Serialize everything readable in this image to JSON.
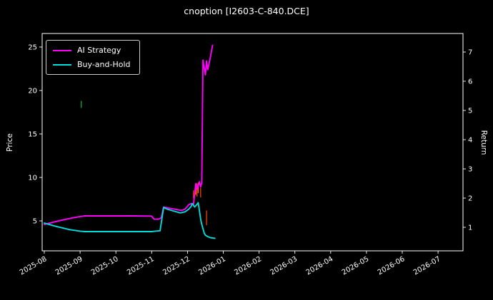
{
  "chart_data": {
    "type": "line",
    "title": "cnoption [I2603-C-840.DCE]",
    "ylabel": "Price",
    "y2label": "Return",
    "background_color": "#000000",
    "text_color": "#ffffff",
    "frame_color": "#ffffff",
    "legend_position": "upper left",
    "grid": false,
    "x_tick_labels": [
      "2025-08",
      "2025-09",
      "2025-10",
      "2025-11",
      "2025-12",
      "2026-01",
      "2026-02",
      "2026-03",
      "2026-04",
      "2026-05",
      "2026-06",
      "2026-07"
    ],
    "price_axis": {
      "ticks": [
        5,
        10,
        15,
        20,
        25
      ],
      "range": [
        1.6,
        26.6
      ]
    },
    "return_axis": {
      "ticks": [
        1,
        2,
        3,
        4,
        5,
        6,
        7
      ],
      "range": [
        0.2,
        7.6
      ]
    },
    "series": [
      {
        "name": "AI Strategy",
        "color": "#ff00ff",
        "axis": "price",
        "points": [
          [
            "2025-08-01",
            4.6
          ],
          [
            "2025-08-07",
            4.8
          ],
          [
            "2025-08-16",
            5.1
          ],
          [
            "2025-08-25",
            5.35
          ],
          [
            "2025-09-01",
            5.5
          ],
          [
            "2025-09-05",
            5.57
          ],
          [
            "2025-10-15",
            5.57
          ],
          [
            "2025-11-01",
            5.55
          ],
          [
            "2025-11-03",
            5.2
          ],
          [
            "2025-11-07",
            5.2
          ],
          [
            "2025-11-09",
            5.35
          ],
          [
            "2025-11-11",
            6.6
          ],
          [
            "2025-11-16",
            6.45
          ],
          [
            "2025-11-22",
            6.3
          ],
          [
            "2025-11-26",
            6.2
          ],
          [
            "2025-11-29",
            6.35
          ],
          [
            "2025-12-02",
            6.85
          ],
          [
            "2025-12-04",
            7.0
          ],
          [
            "2025-12-06",
            6.9
          ],
          [
            "2025-12-08",
            9.3
          ],
          [
            "2025-12-09",
            8.6
          ],
          [
            "2025-12-11",
            9.5
          ],
          [
            "2025-12-12",
            8.9
          ],
          [
            "2025-12-13",
            9.4
          ],
          [
            "2025-12-14",
            23.5
          ],
          [
            "2025-12-16",
            21.8
          ],
          [
            "2025-12-17",
            23.4
          ],
          [
            "2025-12-18",
            22.4
          ],
          [
            "2025-12-20",
            23.7
          ],
          [
            "2025-12-22",
            25.2
          ]
        ]
      },
      {
        "name": "Buy-and-Hold",
        "color": "#00dcdc",
        "axis": "price",
        "points": [
          [
            "2025-08-01",
            4.75
          ],
          [
            "2025-08-10",
            4.4
          ],
          [
            "2025-08-22",
            4.0
          ],
          [
            "2025-09-01",
            3.82
          ],
          [
            "2025-09-05",
            3.77
          ],
          [
            "2025-10-15",
            3.77
          ],
          [
            "2025-11-01",
            3.77
          ],
          [
            "2025-11-04",
            3.82
          ],
          [
            "2025-11-08",
            3.87
          ],
          [
            "2025-11-11",
            6.55
          ],
          [
            "2025-11-14",
            6.35
          ],
          [
            "2025-11-19",
            6.15
          ],
          [
            "2025-11-25",
            5.92
          ],
          [
            "2025-11-29",
            6.05
          ],
          [
            "2025-12-02",
            6.35
          ],
          [
            "2025-12-04",
            6.65
          ],
          [
            "2025-12-05",
            7.0
          ],
          [
            "2025-12-07",
            6.6
          ],
          [
            "2025-12-09",
            6.9
          ],
          [
            "2025-12-10",
            7.1
          ],
          [
            "2025-12-11",
            6.2
          ],
          [
            "2025-12-12",
            5.2
          ],
          [
            "2025-12-13",
            4.6
          ],
          [
            "2025-12-15",
            3.6
          ],
          [
            "2025-12-16",
            3.35
          ],
          [
            "2025-12-18",
            3.2
          ],
          [
            "2025-12-20",
            3.08
          ],
          [
            "2025-12-24",
            3.0
          ]
        ]
      }
    ],
    "candle_marks": [
      {
        "date": "2025-09-02",
        "low": 18.0,
        "high": 18.8,
        "color": "#00a33c"
      },
      {
        "date": "2025-12-06",
        "low": 7.6,
        "high": 8.5,
        "color": "#e03a00"
      },
      {
        "date": "2025-12-08",
        "low": 8.0,
        "high": 9.1,
        "color": "#ff6a00"
      },
      {
        "date": "2025-12-09",
        "low": 7.8,
        "high": 9.3,
        "color": "#e03a00"
      },
      {
        "date": "2025-12-10",
        "low": 8.2,
        "high": 9.4,
        "color": "#ff6a00"
      },
      {
        "date": "2025-12-12",
        "low": 7.7,
        "high": 8.8,
        "color": "#e03a00"
      },
      {
        "date": "2025-12-17",
        "low": 4.5,
        "high": 6.2,
        "color": "#e03a00"
      }
    ]
  }
}
